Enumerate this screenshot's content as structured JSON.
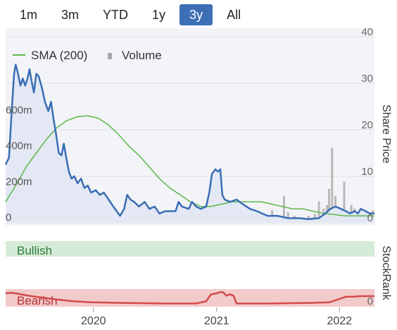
{
  "range_selector": {
    "options": [
      "1m",
      "3m",
      "YTD",
      "1y",
      "3y",
      "All"
    ],
    "selected": "3y"
  },
  "legend": {
    "sma_label": "SMA (200)",
    "volume_label": "Volume"
  },
  "colors": {
    "price_line": "#3a6db5",
    "price_area": "#e3e8f4",
    "sma_line": "#5cb84a",
    "volume_bar": "#b8b8b8",
    "bullish_fill": "#d6ebd7",
    "bearish_fill": "#f3caca",
    "stockrank_line": "#d24b4b",
    "active_button": "#3d6fb6"
  },
  "chart_data": [
    {
      "type": "line",
      "title": "",
      "ylabel": "Share Price",
      "y_ticks": [
        "40",
        "30",
        "20",
        "10",
        "0"
      ],
      "ylim": [
        0,
        40
      ],
      "volume_ticks": [
        "600m",
        "400m",
        "200m",
        "0"
      ],
      "volume_ylim": [
        0,
        700000000
      ],
      "x_tick_labels": [
        "2020",
        "2021",
        "2022"
      ],
      "x_tick_dates": [
        "2020-01-01",
        "2021-01-01",
        "2022-01-01"
      ],
      "xlim": [
        "2019-04-15",
        "2022-04-15"
      ],
      "grid": true,
      "legend_position": "top-left",
      "series": [
        {
          "name": "",
          "role": "price",
          "points": [
            [
              "2019-04-15",
              12.5
            ],
            [
              "2019-04-25",
              14.0
            ],
            [
              "2019-05-03",
              24.0
            ],
            [
              "2019-05-10",
              32.0
            ],
            [
              "2019-05-15",
              34.0
            ],
            [
              "2019-05-22",
              32.0
            ],
            [
              "2019-05-29",
              29.5
            ],
            [
              "2019-06-05",
              31.0
            ],
            [
              "2019-06-12",
              29.5
            ],
            [
              "2019-06-19",
              31.0
            ],
            [
              "2019-06-25",
              33.0
            ],
            [
              "2019-07-01",
              30.5
            ],
            [
              "2019-07-08",
              28.0
            ],
            [
              "2019-07-15",
              32.0
            ],
            [
              "2019-07-22",
              31.5
            ],
            [
              "2019-08-01",
              29.0
            ],
            [
              "2019-08-10",
              26.0
            ],
            [
              "2019-08-20",
              24.0
            ],
            [
              "2019-08-28",
              26.0
            ],
            [
              "2019-09-05",
              22.0
            ],
            [
              "2019-09-12",
              19.0
            ],
            [
              "2019-09-20",
              15.0
            ],
            [
              "2019-09-28",
              14.5
            ],
            [
              "2019-10-05",
              17.0
            ],
            [
              "2019-10-12",
              14.0
            ],
            [
              "2019-10-20",
              11.0
            ],
            [
              "2019-10-28",
              9.5
            ],
            [
              "2019-11-05",
              10.0
            ],
            [
              "2019-11-15",
              8.5
            ],
            [
              "2019-11-25",
              9.5
            ],
            [
              "2019-12-05",
              7.5
            ],
            [
              "2019-12-15",
              8.0
            ],
            [
              "2019-12-25",
              6.5
            ],
            [
              "2020-01-08",
              7.0
            ],
            [
              "2020-01-20",
              6.0
            ],
            [
              "2020-02-01",
              6.5
            ],
            [
              "2020-02-15",
              5.0
            ],
            [
              "2020-02-29",
              3.5
            ],
            [
              "2020-03-10",
              2.5
            ],
            [
              "2020-03-20",
              1.5
            ],
            [
              "2020-04-01",
              3.0
            ],
            [
              "2020-04-10",
              6.0
            ],
            [
              "2020-04-20",
              5.0
            ],
            [
              "2020-05-01",
              4.5
            ],
            [
              "2020-05-15",
              3.5
            ],
            [
              "2020-06-01",
              4.5
            ],
            [
              "2020-06-15",
              3.0
            ],
            [
              "2020-07-01",
              3.5
            ],
            [
              "2020-07-15",
              2.0
            ],
            [
              "2020-08-01",
              2.5
            ],
            [
              "2020-09-01",
              2.5
            ],
            [
              "2020-09-10",
              4.5
            ],
            [
              "2020-09-20",
              3.5
            ],
            [
              "2020-10-10",
              3.0
            ],
            [
              "2020-10-20",
              4.5
            ],
            [
              "2020-11-01",
              3.5
            ],
            [
              "2020-11-15",
              3.0
            ],
            [
              "2020-12-01",
              3.5
            ],
            [
              "2020-12-10",
              6.5
            ],
            [
              "2020-12-18",
              10.5
            ],
            [
              "2020-12-28",
              11.5
            ],
            [
              "2021-01-05",
              11.0
            ],
            [
              "2021-01-12",
              11.5
            ],
            [
              "2021-01-18",
              6.0
            ],
            [
              "2021-01-25",
              5.0
            ],
            [
              "2021-02-10",
              4.5
            ],
            [
              "2021-03-01",
              5.0
            ],
            [
              "2021-03-20",
              4.0
            ],
            [
              "2021-04-10",
              3.0
            ],
            [
              "2021-05-01",
              2.5
            ],
            [
              "2021-06-01",
              1.5
            ],
            [
              "2021-07-01",
              1.5
            ],
            [
              "2021-08-01",
              1.0
            ],
            [
              "2021-09-01",
              1.0
            ],
            [
              "2021-10-01",
              0.8
            ],
            [
              "2021-11-01",
              1.0
            ],
            [
              "2021-11-20",
              2.0
            ],
            [
              "2021-12-05",
              3.0
            ],
            [
              "2021-12-20",
              3.5
            ],
            [
              "2022-01-05",
              3.0
            ],
            [
              "2022-01-20",
              2.5
            ],
            [
              "2022-02-01",
              2.0
            ],
            [
              "2022-02-15",
              2.5
            ],
            [
              "2022-02-25",
              2.0
            ],
            [
              "2022-03-05",
              3.0
            ],
            [
              "2022-03-20",
              2.5
            ],
            [
              "2022-04-01",
              2.0
            ],
            [
              "2022-04-15",
              2.0
            ]
          ]
        },
        {
          "name": "SMA (200)",
          "role": "sma",
          "points": [
            [
              "2019-04-15",
              4.5
            ],
            [
              "2019-05-15",
              8.0
            ],
            [
              "2019-06-15",
              12.0
            ],
            [
              "2019-07-15",
              15.0
            ],
            [
              "2019-08-15",
              18.0
            ],
            [
              "2019-09-15",
              20.5
            ],
            [
              "2019-10-15",
              22.0
            ],
            [
              "2019-11-15",
              22.8
            ],
            [
              "2019-12-15",
              23.0
            ],
            [
              "2020-01-15",
              22.5
            ],
            [
              "2020-02-15",
              21.0
            ],
            [
              "2020-03-15",
              19.0
            ],
            [
              "2020-04-15",
              16.5
            ],
            [
              "2020-05-15",
              14.5
            ],
            [
              "2020-06-15",
              12.0
            ],
            [
              "2020-07-15",
              9.5
            ],
            [
              "2020-08-15",
              7.5
            ],
            [
              "2020-09-15",
              6.0
            ],
            [
              "2020-10-15",
              4.5
            ],
            [
              "2020-11-15",
              3.5
            ],
            [
              "2020-12-15",
              3.5
            ],
            [
              "2021-01-15",
              4.0
            ],
            [
              "2021-02-15",
              4.5
            ],
            [
              "2021-03-15",
              4.5
            ],
            [
              "2021-04-15",
              4.5
            ],
            [
              "2021-05-15",
              4.5
            ],
            [
              "2021-06-15",
              4.0
            ],
            [
              "2021-07-15",
              3.5
            ],
            [
              "2021-08-15",
              3.0
            ],
            [
              "2021-09-15",
              3.0
            ],
            [
              "2021-10-15",
              2.5
            ],
            [
              "2021-11-15",
              2.0
            ],
            [
              "2021-12-15",
              1.8
            ],
            [
              "2022-01-15",
              1.5
            ],
            [
              "2022-02-15",
              1.5
            ],
            [
              "2022-03-15",
              1.5
            ],
            [
              "2022-04-15",
              1.5
            ]
          ]
        },
        {
          "name": "Volume",
          "role": "volume",
          "points": [
            [
              "2019-05-01",
              10000000
            ],
            [
              "2019-06-15",
              12000000
            ],
            [
              "2019-08-01",
              15000000
            ],
            [
              "2019-09-15",
              12000000
            ],
            [
              "2019-10-15",
              18000000
            ],
            [
              "2019-12-01",
              10000000
            ],
            [
              "2020-01-15",
              12000000
            ],
            [
              "2020-03-01",
              20000000
            ],
            [
              "2020-04-15",
              15000000
            ],
            [
              "2020-06-01",
              12000000
            ],
            [
              "2020-07-01",
              80000000
            ],
            [
              "2020-07-15",
              50000000
            ],
            [
              "2020-08-15",
              40000000
            ],
            [
              "2020-09-15",
              30000000
            ],
            [
              "2020-10-15",
              25000000
            ],
            [
              "2020-12-20",
              20000000
            ],
            [
              "2021-01-10",
              15000000
            ],
            [
              "2021-02-15",
              12000000
            ],
            [
              "2021-03-15",
              10000000
            ],
            [
              "2021-04-15",
              10000000
            ],
            [
              "2021-05-15",
              10000000
            ],
            [
              "2021-06-15",
              70000000
            ],
            [
              "2021-07-05",
              40000000
            ],
            [
              "2021-07-20",
              150000000
            ],
            [
              "2021-08-01",
              60000000
            ],
            [
              "2021-08-20",
              40000000
            ],
            [
              "2021-09-10",
              30000000
            ],
            [
              "2021-10-01",
              40000000
            ],
            [
              "2021-10-20",
              50000000
            ],
            [
              "2021-11-01",
              120000000
            ],
            [
              "2021-11-15",
              80000000
            ],
            [
              "2021-11-25",
              100000000
            ],
            [
              "2021-12-01",
              190000000
            ],
            [
              "2021-12-10",
              420000000
            ],
            [
              "2021-12-20",
              150000000
            ],
            [
              "2022-01-05",
              80000000
            ],
            [
              "2022-01-15",
              230000000
            ],
            [
              "2022-01-25",
              60000000
            ],
            [
              "2022-02-05",
              100000000
            ],
            [
              "2022-02-15",
              80000000
            ],
            [
              "2022-02-25",
              40000000
            ],
            [
              "2022-03-10",
              60000000
            ],
            [
              "2022-03-25",
              30000000
            ],
            [
              "2022-04-10",
              70000000
            ]
          ]
        }
      ]
    },
    {
      "type": "line",
      "title": "",
      "ylabel": "StockRank",
      "y_ticks": [
        "0"
      ],
      "band_labels": {
        "top": "Bullish",
        "bottom": "Bearish"
      },
      "ylim": [
        0,
        100
      ],
      "series": [
        {
          "name": "",
          "points": [
            [
              "2019-04-15",
              20
            ],
            [
              "2019-05-01",
              21
            ],
            [
              "2019-05-15",
              20
            ],
            [
              "2019-06-01",
              18
            ],
            [
              "2019-07-01",
              15
            ],
            [
              "2019-09-01",
              10
            ],
            [
              "2019-11-01",
              6
            ],
            [
              "2020-01-01",
              4
            ],
            [
              "2020-04-01",
              3
            ],
            [
              "2020-08-01",
              2
            ],
            [
              "2020-11-01",
              2
            ],
            [
              "2020-12-01",
              6
            ],
            [
              "2020-12-15",
              18
            ],
            [
              "2021-01-01",
              20
            ],
            [
              "2021-01-10",
              22
            ],
            [
              "2021-01-20",
              22
            ],
            [
              "2021-01-30",
              16
            ],
            [
              "2021-02-10",
              18
            ],
            [
              "2021-02-20",
              16
            ],
            [
              "2021-03-01",
              2
            ],
            [
              "2021-06-01",
              2
            ],
            [
              "2021-10-01",
              3
            ],
            [
              "2021-12-01",
              4
            ],
            [
              "2022-01-01",
              10
            ],
            [
              "2022-01-20",
              14
            ],
            [
              "2022-02-15",
              14
            ],
            [
              "2022-03-01",
              15
            ],
            [
              "2022-04-15",
              15
            ]
          ]
        }
      ]
    }
  ]
}
